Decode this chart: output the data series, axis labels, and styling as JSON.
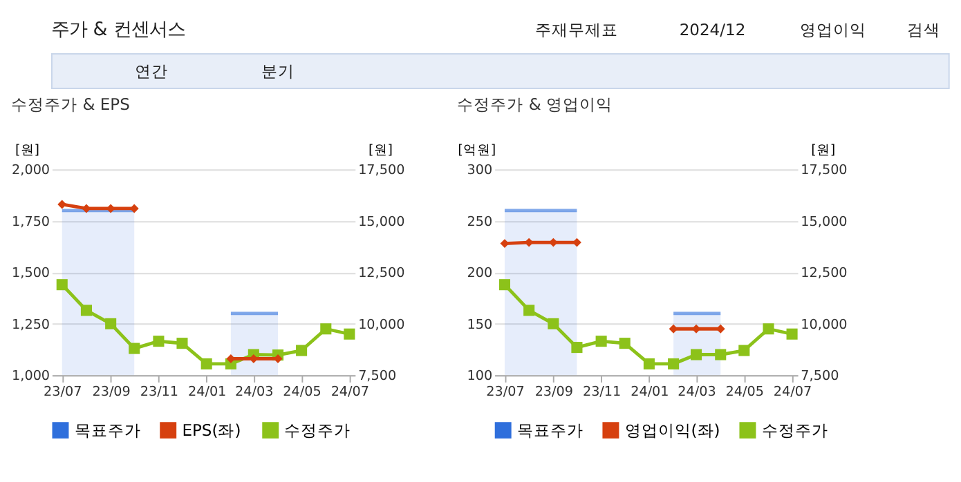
{
  "chart_data": [
    {
      "type": "line",
      "title": "수정주가 & EPS",
      "ylabel": "[원]",
      "y2label": "[원]",
      "annotations": [
        "주가 & 컨센서스",
        "주재무제표",
        "2024/12",
        "영업이익",
        "검색",
        "연간",
        "분기"
      ],
      "x": [
        "2023-07",
        "2023-08",
        "2023-09",
        "2023-10",
        "2023-11",
        "2023-12",
        "2024-01",
        "2024-02",
        "2024-03",
        "2024-04",
        "2024-05",
        "2024-06",
        "2024-07"
      ],
      "xlim": [
        "2023-06-18",
        "2024-07-08"
      ],
      "xticks": [
        {
          "value": "2023-07",
          "label": "23/07"
        },
        {
          "value": "2023-09",
          "label": "23/09"
        },
        {
          "value": "2023-11",
          "label": "23/11"
        },
        {
          "value": "2024-01",
          "label": "24/01"
        },
        {
          "value": "2024-03",
          "label": "24/03"
        },
        {
          "value": "2024-05",
          "label": "24/05"
        },
        {
          "value": "2024-07",
          "label": "24/07"
        }
      ],
      "ylim": [
        1000,
        2000
      ],
      "yticks": [
        {
          "value": 1000,
          "label": "1,000"
        },
        {
          "value": 1250,
          "label": "1,250"
        },
        {
          "value": 1500,
          "label": "1,500"
        },
        {
          "value": 1750,
          "label": "1,750"
        },
        {
          "value": 2000,
          "label": "2,000"
        }
      ],
      "y2lim": [
        7500,
        17500
      ],
      "y2ticks": [
        {
          "value": 7500,
          "label": "7,500"
        },
        {
          "value": 10000,
          "label": "10,000"
        },
        {
          "value": 12500,
          "label": "12,500"
        },
        {
          "value": 15000,
          "label": "15,000"
        },
        {
          "value": 17500,
          "label": "17,500"
        }
      ],
      "grid": "y",
      "legend": "bottom",
      "series": [
        {
          "name": "목표주가",
          "type": "area",
          "axis": "y2",
          "color": "#2f6fdc",
          "values": [
            15500,
            15500,
            15500,
            15500,
            null,
            null,
            null,
            10500,
            10500,
            10500,
            null,
            null,
            null
          ]
        },
        {
          "name": "EPS(좌)",
          "type": "line",
          "color": "#d6400f",
          "marker": "diamond",
          "values": [
            1830,
            1810,
            1810,
            1810,
            null,
            null,
            null,
            1080,
            1080,
            1080,
            null,
            null,
            null
          ]
        },
        {
          "name": "수정주가",
          "type": "line",
          "axis": "y2",
          "color": "#8cc21a",
          "marker": "square",
          "values": [
            11900,
            10650,
            10000,
            8800,
            9150,
            9050,
            8050,
            8050,
            8500,
            8480,
            8700,
            9750,
            9500
          ]
        }
      ]
    },
    {
      "type": "line",
      "title": "수정주가 & 영업이익",
      "ylabel": "[억원]",
      "y2label": "[원]",
      "x": [
        "2023-07",
        "2023-08",
        "2023-09",
        "2023-10",
        "2023-11",
        "2023-12",
        "2024-01",
        "2024-02",
        "2024-03",
        "2024-04",
        "2024-05",
        "2024-06",
        "2024-07"
      ],
      "xlim": [
        "2023-06-18",
        "2024-07-08"
      ],
      "xticks": [
        {
          "value": "2023-07",
          "label": "23/07"
        },
        {
          "value": "2023-09",
          "label": "23/09"
        },
        {
          "value": "2023-11",
          "label": "23/11"
        },
        {
          "value": "2024-01",
          "label": "24/01"
        },
        {
          "value": "2024-03",
          "label": "24/03"
        },
        {
          "value": "2024-05",
          "label": "24/05"
        },
        {
          "value": "2024-07",
          "label": "24/07"
        }
      ],
      "ylim": [
        100,
        300
      ],
      "yticks": [
        100,
        150,
        200,
        250,
        300
      ],
      "y2lim": [
        7500,
        17500
      ],
      "y2ticks": [
        {
          "value": 7500,
          "label": "7,500"
        },
        {
          "value": 10000,
          "label": "10,000"
        },
        {
          "value": 12500,
          "label": "12,500"
        },
        {
          "value": 15000,
          "label": "15,000"
        },
        {
          "value": 17500,
          "label": "17,500"
        }
      ],
      "grid": "y",
      "legend": "bottom",
      "series": [
        {
          "name": "목표주가",
          "type": "area",
          "axis": "y2",
          "color": "#2f6fdc",
          "values": [
            15500,
            15500,
            15500,
            15500,
            null,
            null,
            null,
            10500,
            10500,
            10500,
            null,
            null,
            null
          ]
        },
        {
          "name": "영업이익(좌)",
          "type": "line",
          "color": "#d6400f",
          "marker": "diamond",
          "values": [
            228,
            229,
            229,
            229,
            null,
            null,
            null,
            145,
            145,
            145,
            null,
            null,
            null
          ]
        },
        {
          "name": "수정주가",
          "type": "line",
          "axis": "y2",
          "color": "#8cc21a",
          "marker": "square",
          "values": [
            11900,
            10650,
            10000,
            8850,
            9150,
            9050,
            8050,
            8050,
            8500,
            8500,
            8700,
            9750,
            9500
          ]
        }
      ]
    }
  ]
}
